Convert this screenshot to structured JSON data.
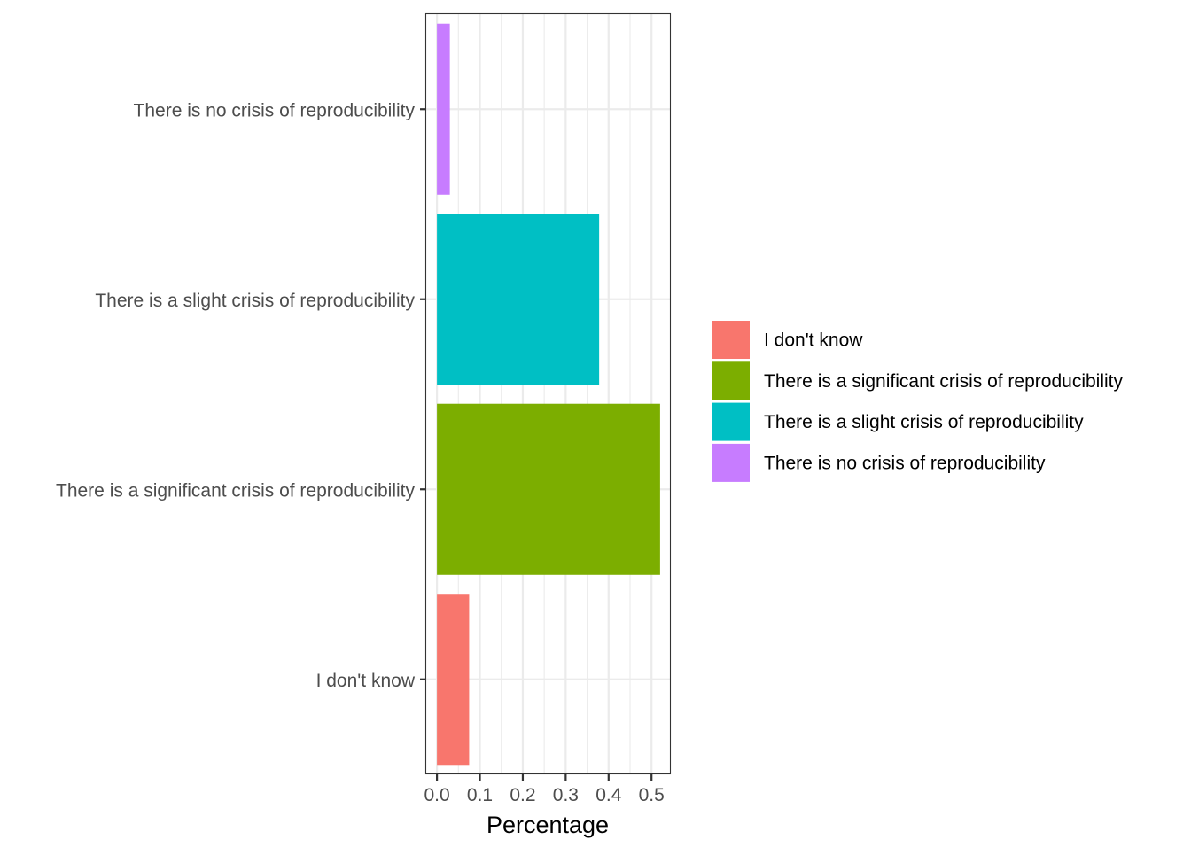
{
  "chart_data": {
    "type": "bar",
    "orientation": "horizontal",
    "title": "",
    "xlabel": "Percentage",
    "ylabel": "",
    "categories": [
      "I don't know",
      "There is a significant crisis of reproducibility",
      "There is a slight crisis of reproducibility",
      "There is no crisis of reproducibility"
    ],
    "values": [
      0.075,
      0.52,
      0.378,
      0.03
    ],
    "colors": [
      "#F8766D",
      "#7CAE00",
      "#00BFC4",
      "#C77CFF"
    ],
    "xlim": [
      -0.025,
      0.545
    ],
    "xticks": [
      0.0,
      0.1,
      0.2,
      0.3,
      0.4,
      0.5
    ],
    "xtick_labels": [
      "0.0",
      "0.1",
      "0.2",
      "0.3",
      "0.4",
      "0.5"
    ],
    "grid": true,
    "legend": {
      "position": "right",
      "title": "",
      "entries": [
        "I don't know",
        "There is a significant crisis of reproducibility",
        "There is a slight crisis of reproducibility",
        "There is no crisis of reproducibility"
      ]
    }
  }
}
